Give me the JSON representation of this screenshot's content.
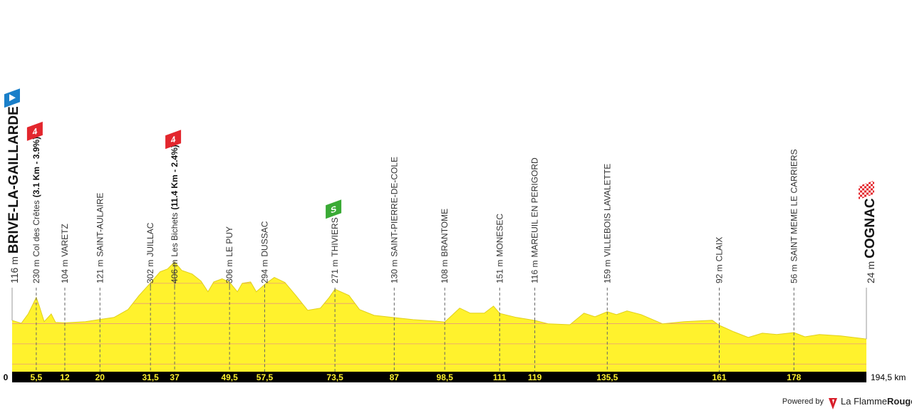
{
  "chart_data": {
    "type": "area",
    "color": "#fff22d",
    "line_color": "#e0cf1a",
    "grid_color": "#e89a7a",
    "xlim": [
      0,
      194.5
    ],
    "ylim": [
      -138,
      430
    ],
    "grid_lines": [
      -100,
      0,
      100,
      200,
      300
    ],
    "x": [
      0,
      2.1,
      3.7,
      5.5,
      6.2,
      7.3,
      8.9,
      9.9,
      12,
      16.7,
      20,
      23.2,
      26.4,
      28.9,
      31.5,
      33.7,
      35.4,
      37,
      38.6,
      41,
      43,
      44.6,
      45.9,
      47.8,
      49.5,
      51.3,
      52.4,
      54.3,
      55.6,
      57.5,
      59.7,
      62.1,
      64.6,
      67.3,
      70.2,
      72.2,
      73.5,
      76.7,
      79.1,
      82.4,
      87,
      91.3,
      96.2,
      98.5,
      101.9,
      104.3,
      107.5,
      109.6,
      111,
      114.8,
      119,
      122.1,
      127,
      130.2,
      132.7,
      135.5,
      137.6,
      140,
      143.2,
      148.1,
      153,
      159.4,
      161,
      164.3,
      167.6,
      170.8,
      174.1,
      178,
      180.5,
      183.8,
      188.7,
      194.5
    ],
    "values": [
      116,
      102,
      150,
      230,
      187,
      110,
      148,
      106,
      104,
      110,
      121,
      131,
      170,
      240,
      302,
      357,
      371,
      406,
      364,
      346,
      311,
      258,
      307,
      322,
      306,
      258,
      300,
      307,
      258,
      294,
      329,
      304,
      240,
      166,
      177,
      230,
      271,
      240,
      170,
      141,
      130,
      120,
      113,
      108,
      177,
      152,
      152,
      187,
      151,
      131,
      116,
      99,
      95,
      152,
      134,
      159,
      145,
      163,
      145,
      99,
      110,
      117,
      92,
      60,
      32,
      53,
      46,
      56,
      35,
      46,
      39,
      24
    ],
    "waypoints": [
      {
        "km": 0,
        "elevation": 116,
        "elevation_label": "116 m",
        "name": "BRIVE-LA-GAILLARDE",
        "style": "town",
        "marker": {
          "kind": "start"
        }
      },
      {
        "km": {
          "value": 5.5,
          "label": "5,5"
        },
        "elevation": 230,
        "elevation_label": "230 m",
        "name": "Col des Crêtes",
        "detail": "(3.1 Km - 3.9%)",
        "marker": {
          "kind": "climb",
          "label": "4"
        }
      },
      {
        "km": 12,
        "elevation": 104,
        "elevation_label": "104 m",
        "name": "VARETZ"
      },
      {
        "km": 20,
        "elevation": 121,
        "elevation_label": "121 m",
        "name": "SAINT-AULAIRE"
      },
      {
        "km": {
          "value": 31.5,
          "label": "31,5"
        },
        "elevation": 302,
        "elevation_label": "302 m",
        "name": "JUILLAC"
      },
      {
        "km": 37,
        "elevation": 406,
        "elevation_label": "406 m",
        "name": "Les Bichets",
        "detail": "(11.4 Km - 2.4%)",
        "marker": {
          "kind": "climb",
          "label": "4"
        }
      },
      {
        "km": {
          "value": 49.5,
          "label": "49,5"
        },
        "elevation": 306,
        "elevation_label": "306 m",
        "name": "LE PUY"
      },
      {
        "km": {
          "value": 57.5,
          "label": "57,5"
        },
        "elevation": 294,
        "elevation_label": "294 m",
        "name": "DUSSAC"
      },
      {
        "km": {
          "value": 73.5,
          "label": "73,5"
        },
        "elevation": 271,
        "elevation_label": "271 m",
        "name": "THIVIERS",
        "marker": {
          "kind": "sprint",
          "label": "S"
        }
      },
      {
        "km": 87,
        "elevation": 130,
        "elevation_label": "130 m",
        "name": "SAINT-PIERRE-DE-COLE"
      },
      {
        "km": {
          "value": 98.5,
          "label": "98,5"
        },
        "elevation": 108,
        "elevation_label": "108 m",
        "name": "BRANTOME"
      },
      {
        "km": 111,
        "elevation": 151,
        "elevation_label": "151 m",
        "name": "MONESEC"
      },
      {
        "km": 119,
        "elevation": 116,
        "elevation_label": "116 m",
        "name": "MAREUIL EN PERIGORD"
      },
      {
        "km": {
          "value": 135.5,
          "label": "135,5"
        },
        "elevation": 159,
        "elevation_label": "159 m",
        "name": "VILLEBOIS LAVALETTE"
      },
      {
        "km": 161,
        "elevation": 92,
        "elevation_label": "92 m",
        "name": "CLAIX"
      },
      {
        "km": 178,
        "elevation": 56,
        "elevation_label": "56 m",
        "name": "SAINT MEME LE CARRIERS"
      },
      {
        "km": {
          "value": 194.5,
          "label": "194,5 km"
        },
        "elevation": 24,
        "elevation_label": "24 m",
        "name": "COGNAC",
        "style": "town",
        "marker": {
          "kind": "finish"
        }
      }
    ]
  },
  "footer": {
    "powered_by": "Powered by",
    "brand_light": "La Flamme",
    "brand_bold": "Rouge"
  }
}
